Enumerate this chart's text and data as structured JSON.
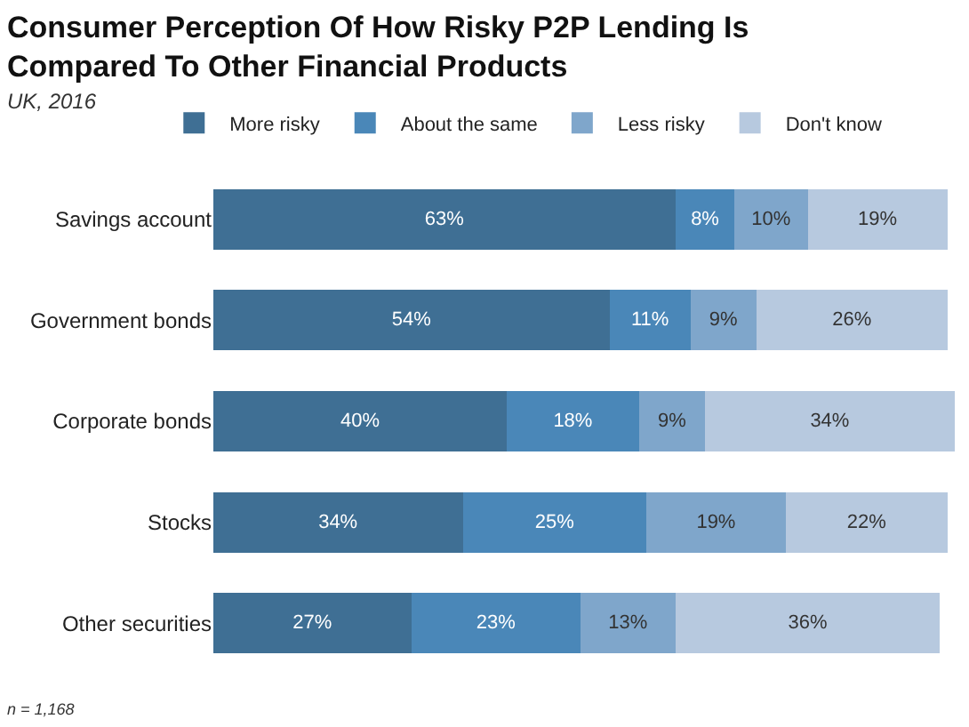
{
  "chart_data": {
    "type": "bar",
    "orientation": "horizontal",
    "stacked": true,
    "title": "Consumer Perception Of How Risky P2P Lending Is Compared To Other Financial Products",
    "subtitle": "UK, 2016",
    "categories": [
      "Savings account",
      "Government bonds",
      "Corporate bonds",
      "Stocks",
      "Other securities"
    ],
    "series": [
      {
        "name": "More risky",
        "color": "#3f6f94",
        "values": [
          63,
          54,
          40,
          34,
          27
        ],
        "value_labels": [
          "63%",
          "54%",
          "40%",
          "34%",
          "27%"
        ]
      },
      {
        "name": "About the same",
        "color": "#4a87b8",
        "values": [
          8,
          11,
          18,
          25,
          23
        ],
        "value_labels": [
          "8%",
          "11%",
          "18%",
          "25%",
          "23%"
        ]
      },
      {
        "name": "Less risky",
        "color": "#7fa6cb",
        "values": [
          10,
          9,
          9,
          19,
          13
        ],
        "value_labels": [
          "10%",
          "9%",
          "9%",
          "19%",
          "13%"
        ]
      },
      {
        "name": "Don't know",
        "color": "#b7c9df",
        "values": [
          19,
          26,
          34,
          22,
          36
        ],
        "value_labels": [
          "19%",
          "26%",
          "34%",
          "22%",
          "36%"
        ]
      }
    ],
    "legend": "top",
    "annotations": [
      "n = 1,168"
    ]
  }
}
